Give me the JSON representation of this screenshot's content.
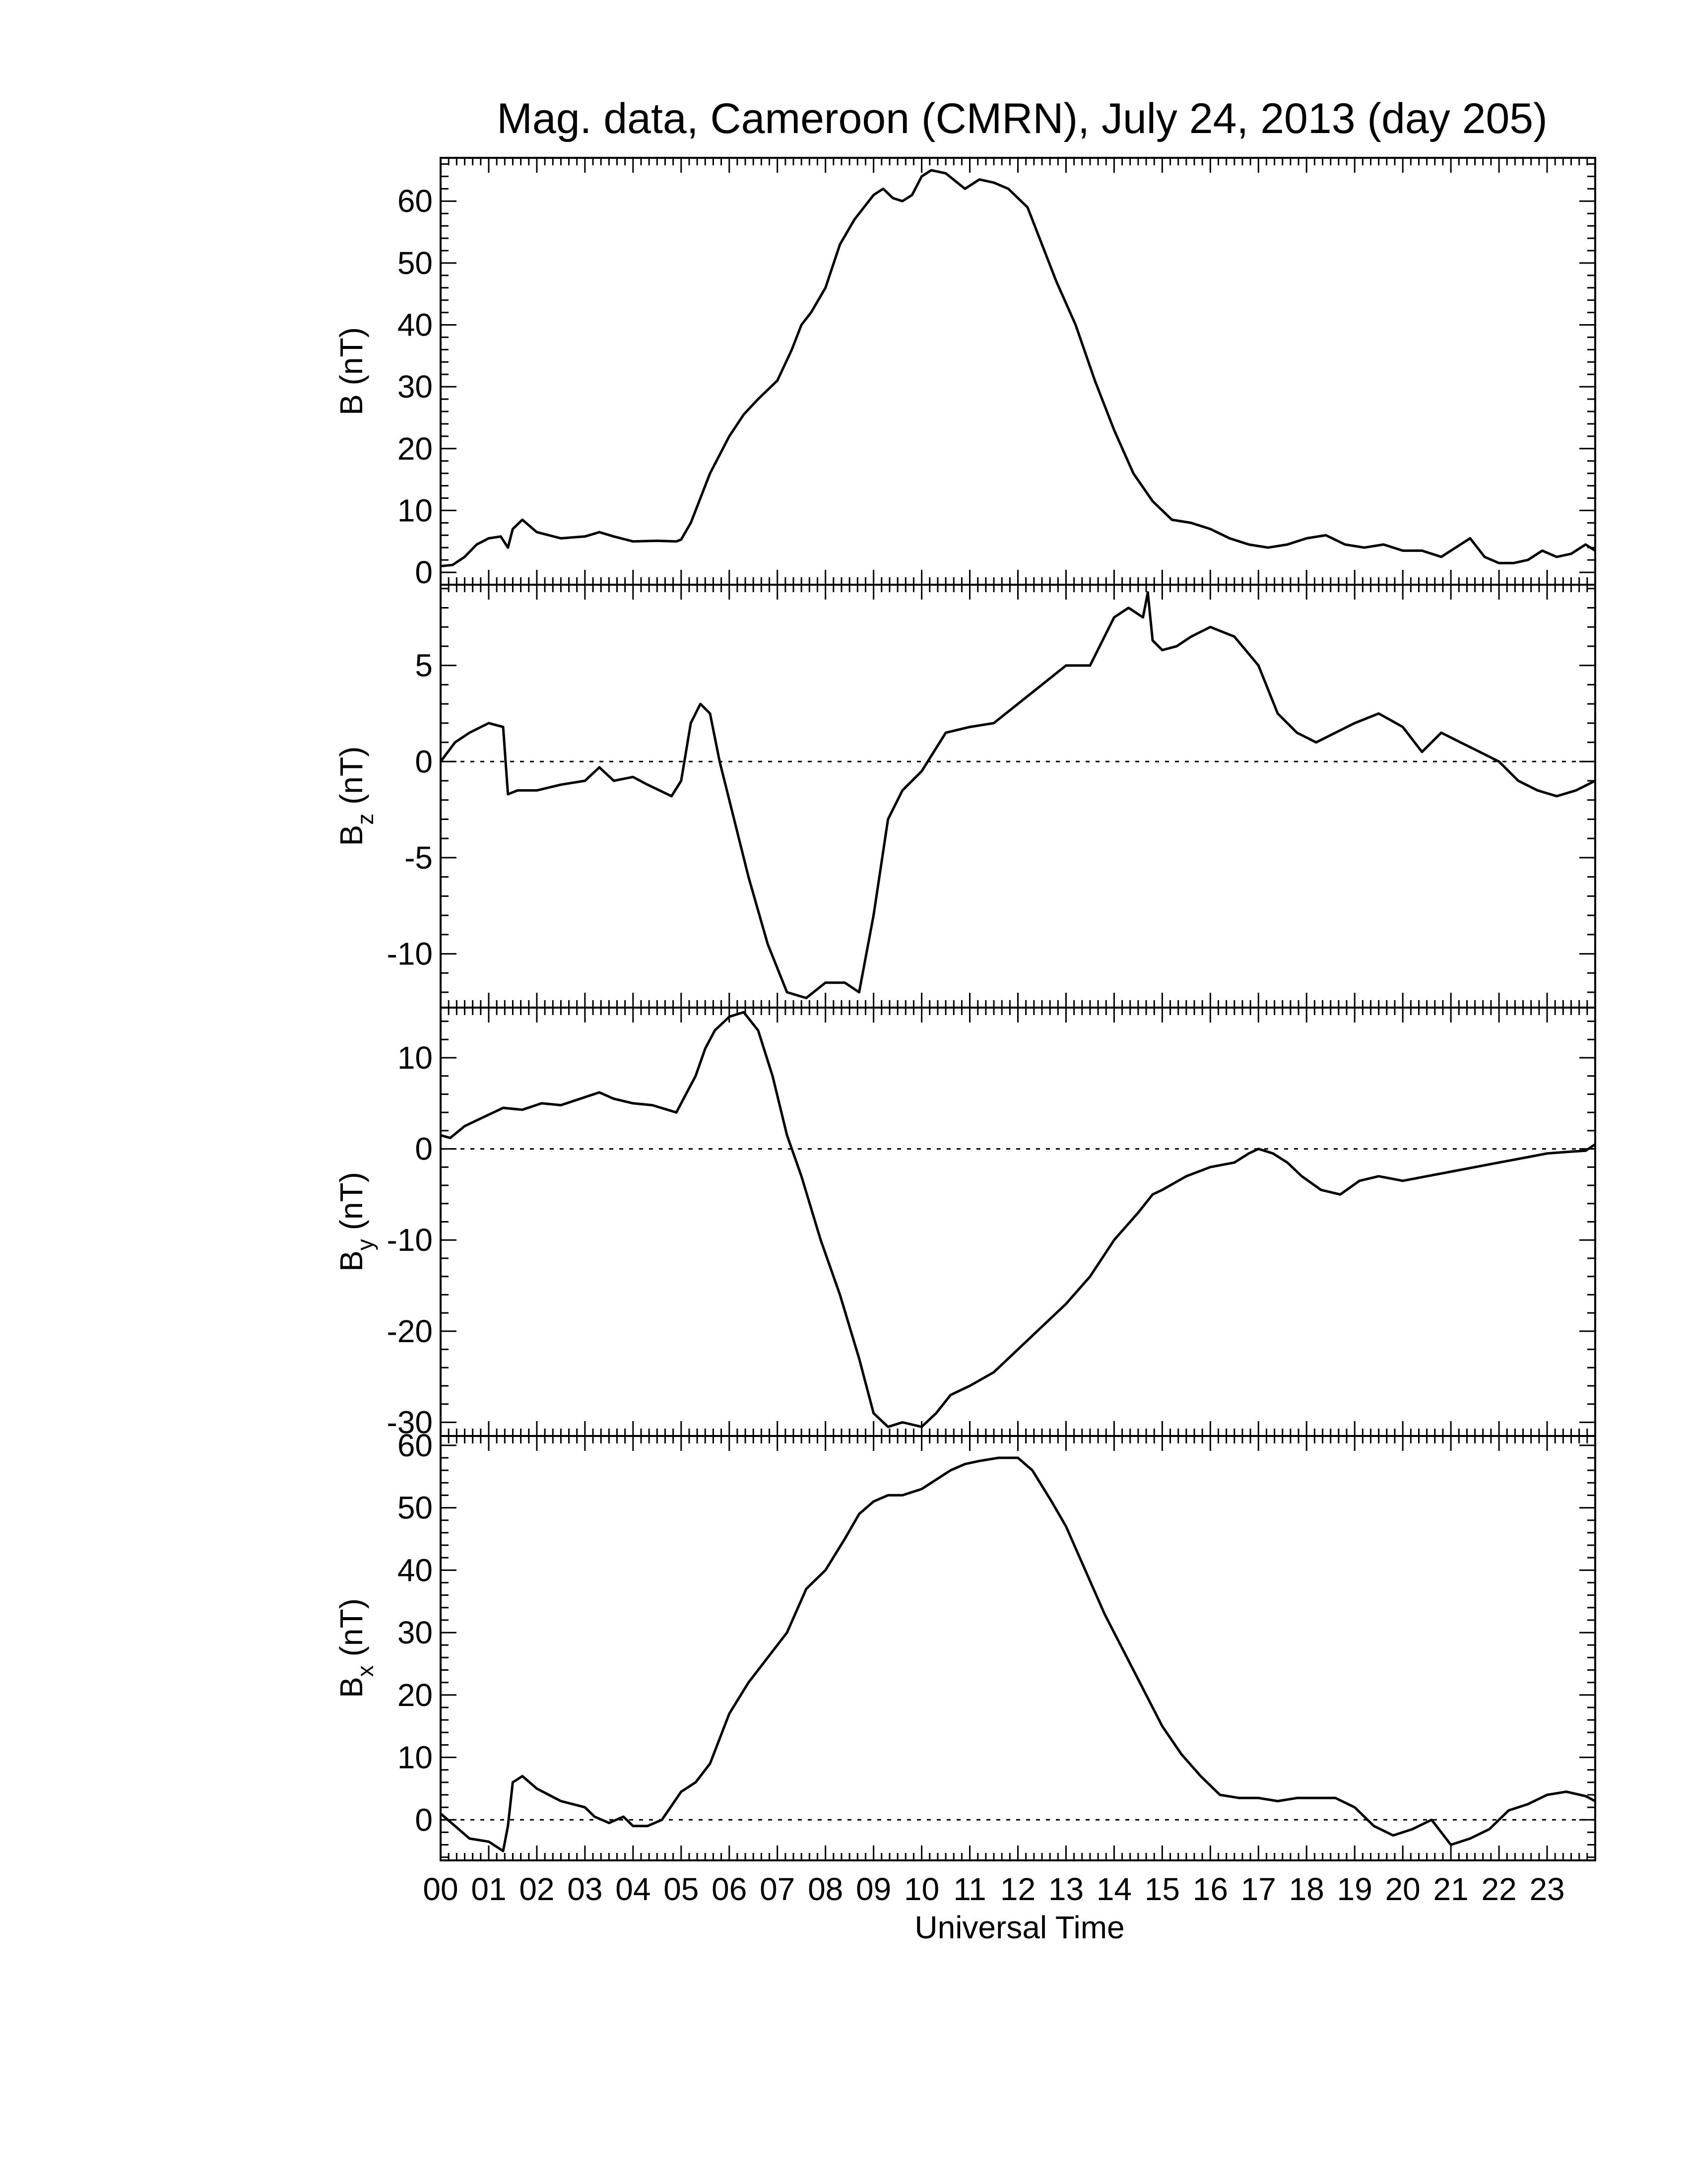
{
  "chart_data": {
    "type": "line",
    "title": "Mag. data, Cameroon (CMRN), July 24, 2013 (day 205)",
    "xlabel": "Universal Time",
    "x_tick_labels": [
      "00",
      "01",
      "02",
      "03",
      "04",
      "05",
      "06",
      "07",
      "08",
      "09",
      "10",
      "11",
      "12",
      "13",
      "14",
      "15",
      "16",
      "17",
      "18",
      "19",
      "20",
      "21",
      "22",
      "23"
    ],
    "xlim": [
      0,
      24
    ],
    "panels": [
      {
        "id": "B",
        "ylabel_main": "B",
        "ylabel_sub": "",
        "ylabel_unit": " (nT)",
        "ylim": [
          -2,
          67
        ],
        "yticks": [
          0,
          10,
          20,
          30,
          40,
          50,
          60
        ],
        "zero_line": false,
        "series": {
          "x": [
            0,
            0.25,
            0.5,
            0.75,
            1,
            1.25,
            1.4,
            1.5,
            1.7,
            2,
            2.5,
            3,
            3.3,
            3.6,
            4,
            4.5,
            4.9,
            5,
            5.2,
            5.4,
            5.6,
            6,
            6.3,
            6.6,
            7,
            7.3,
            7.5,
            7.7,
            8,
            8.3,
            8.6,
            9,
            9.2,
            9.4,
            9.6,
            9.8,
            10,
            10.2,
            10.5,
            10.9,
            11.2,
            11.5,
            11.8,
            12.2,
            12.5,
            12.8,
            13.2,
            13.6,
            14,
            14.4,
            14.8,
            15.2,
            15.6,
            16,
            16.4,
            16.8,
            17.2,
            17.6,
            18,
            18.4,
            18.8,
            19.2,
            19.6,
            20,
            20.4,
            20.8,
            21.1,
            21.4,
            21.7,
            22,
            22.3,
            22.6,
            22.9,
            23.2,
            23.5,
            23.8,
            24
          ],
          "y": [
            1,
            1.2,
            2.5,
            4.5,
            5.5,
            5.8,
            4,
            7,
            8.5,
            6.5,
            5.5,
            5.8,
            6.5,
            5.8,
            5,
            5.1,
            5,
            5.3,
            8,
            12,
            16,
            22,
            25.5,
            28,
            31,
            36,
            40,
            42,
            46,
            53,
            57,
            61,
            62,
            60.5,
            60,
            61,
            64,
            65,
            64.5,
            62,
            63.5,
            63,
            62,
            59,
            53,
            47,
            40,
            31,
            23,
            16,
            11.5,
            8.5,
            8,
            7,
            5.5,
            4.5,
            4,
            4.5,
            5.5,
            6,
            4.5,
            4,
            4.5,
            3.5,
            3.5,
            2.5,
            4,
            5.5,
            2.5,
            1.5,
            1.5,
            2,
            3.5,
            2.5,
            3,
            4.5,
            3.5
          ]
        }
      },
      {
        "id": "Bz",
        "ylabel_main": "B",
        "ylabel_sub": "z",
        "ylabel_unit": " (nT)",
        "ylim": [
          -12.8,
          9.2
        ],
        "yticks": [
          -10,
          -5,
          0,
          5
        ],
        "zero_line": true,
        "series": {
          "x": [
            0,
            0.3,
            0.6,
            1,
            1.3,
            1.4,
            1.6,
            2,
            2.5,
            3,
            3.3,
            3.6,
            4,
            4.3,
            4.8,
            5,
            5.2,
            5.4,
            5.6,
            5.8,
            6,
            6.4,
            6.8,
            7.2,
            7.6,
            8,
            8.4,
            8.7,
            9,
            9.3,
            9.6,
            10,
            10.5,
            11,
            11.5,
            12,
            12.5,
            13,
            13.5,
            14,
            14.3,
            14.6,
            14.7,
            14.8,
            15,
            15.3,
            15.6,
            16,
            16.5,
            17,
            17.4,
            17.8,
            18.2,
            18.6,
            19,
            19.5,
            20,
            20.4,
            20.8,
            21.2,
            21.6,
            22,
            22.4,
            22.8,
            23.2,
            23.6,
            24
          ],
          "y": [
            0,
            1,
            1.5,
            2,
            1.8,
            -1.7,
            -1.5,
            -1.5,
            -1.2,
            -1,
            -0.3,
            -1,
            -0.8,
            -1.2,
            -1.8,
            -1,
            2,
            3,
            2.5,
            0,
            -2,
            -6,
            -9.5,
            -12,
            -12.3,
            -11.5,
            -11.5,
            -12,
            -8,
            -3,
            -1.5,
            -0.5,
            1.5,
            1.8,
            2,
            3,
            4,
            5,
            5,
            7.5,
            8,
            7.5,
            8.8,
            6.3,
            5.8,
            6,
            6.5,
            7,
            6.5,
            5,
            2.5,
            1.5,
            1,
            1.5,
            2,
            2.5,
            1.8,
            0.5,
            1.5,
            1,
            0.5,
            0,
            -1,
            -1.5,
            -1.8,
            -1.5,
            -1
          ]
        }
      },
      {
        "id": "By",
        "ylabel_main": "B",
        "ylabel_sub": "y",
        "ylabel_unit": " (nT)",
        "ylim": [
          -31.5,
          15.5
        ],
        "yticks": [
          -30,
          -20,
          -10,
          0,
          10
        ],
        "zero_line": true,
        "series": {
          "x": [
            0,
            0.2,
            0.5,
            0.9,
            1.3,
            1.7,
            2.1,
            2.5,
            2.9,
            3.3,
            3.6,
            4,
            4.4,
            4.9,
            5.1,
            5.3,
            5.5,
            5.7,
            6,
            6.3,
            6.6,
            6.9,
            7.2,
            7.5,
            7.9,
            8.3,
            8.7,
            9,
            9.3,
            9.6,
            10,
            10.3,
            10.6,
            11,
            11.5,
            12,
            12.5,
            13,
            13.5,
            14,
            14.5,
            14.8,
            15,
            15.5,
            16,
            16.5,
            16.8,
            17,
            17.3,
            17.6,
            17.9,
            18.3,
            18.7,
            19.1,
            19.5,
            20,
            20.5,
            21,
            21.5,
            22,
            22.5,
            23,
            23.5,
            23.8,
            24
          ],
          "y": [
            1.5,
            1.2,
            2.5,
            3.5,
            4.5,
            4.3,
            5,
            4.8,
            5.5,
            6.2,
            5.5,
            5,
            4.8,
            4,
            6,
            8,
            11,
            13,
            14.5,
            15,
            13,
            8,
            1.5,
            -3,
            -10,
            -16,
            -23,
            -29,
            -30.5,
            -30,
            -30.5,
            -29,
            -27,
            -26,
            -24.5,
            -22,
            -19.5,
            -17,
            -14,
            -10,
            -7,
            -5,
            -4.5,
            -3,
            -2,
            -1.5,
            -0.5,
            0,
            -0.5,
            -1.5,
            -3,
            -4.5,
            -5,
            -3.5,
            -3,
            -3.5,
            -3,
            -2.5,
            -2,
            -1.5,
            -1,
            -0.5,
            -0.3,
            -0.2,
            0.5
          ]
        }
      },
      {
        "id": "Bx",
        "ylabel_main": "B",
        "ylabel_sub": "x",
        "ylabel_unit": " (nT)",
        "ylim": [
          -6.5,
          61.5
        ],
        "yticks": [
          0,
          10,
          20,
          30,
          40,
          50,
          60
        ],
        "zero_line": true,
        "series": {
          "x": [
            0,
            0.3,
            0.6,
            1,
            1.3,
            1.4,
            1.5,
            1.7,
            2,
            2.5,
            3,
            3.2,
            3.5,
            3.8,
            4,
            4.3,
            4.6,
            5,
            5.3,
            5.6,
            6,
            6.4,
            6.8,
            7.2,
            7.6,
            8,
            8.4,
            8.7,
            9,
            9.3,
            9.6,
            10,
            10.3,
            10.6,
            10.9,
            11.2,
            11.6,
            12,
            12.3,
            12.7,
            13,
            13.4,
            13.8,
            14.2,
            14.6,
            15,
            15.4,
            15.8,
            16.2,
            16.6,
            17,
            17.4,
            17.8,
            18.2,
            18.6,
            19,
            19.4,
            19.8,
            20.2,
            20.6,
            21,
            21.4,
            21.8,
            22.2,
            22.6,
            23,
            23.4,
            23.8,
            24
          ],
          "y": [
            1,
            -1,
            -3,
            -3.5,
            -5,
            -1,
            6,
            7,
            5,
            3,
            2,
            0.5,
            -0.5,
            0.5,
            -1,
            -1,
            0,
            4.5,
            6,
            9,
            17,
            22,
            26,
            30,
            37,
            40,
            45,
            49,
            51,
            52,
            52,
            53,
            54.5,
            56,
            57,
            57.5,
            58,
            58,
            56,
            51,
            47,
            40,
            33,
            27,
            21,
            15,
            10.5,
            7,
            4,
            3.5,
            3.5,
            3,
            3.5,
            3.5,
            3.5,
            2,
            -1,
            -2.5,
            -1.5,
            0,
            -4,
            -3,
            -1.5,
            1.5,
            2.5,
            4,
            4.5,
            3.8,
            3
          ]
        }
      }
    ]
  }
}
